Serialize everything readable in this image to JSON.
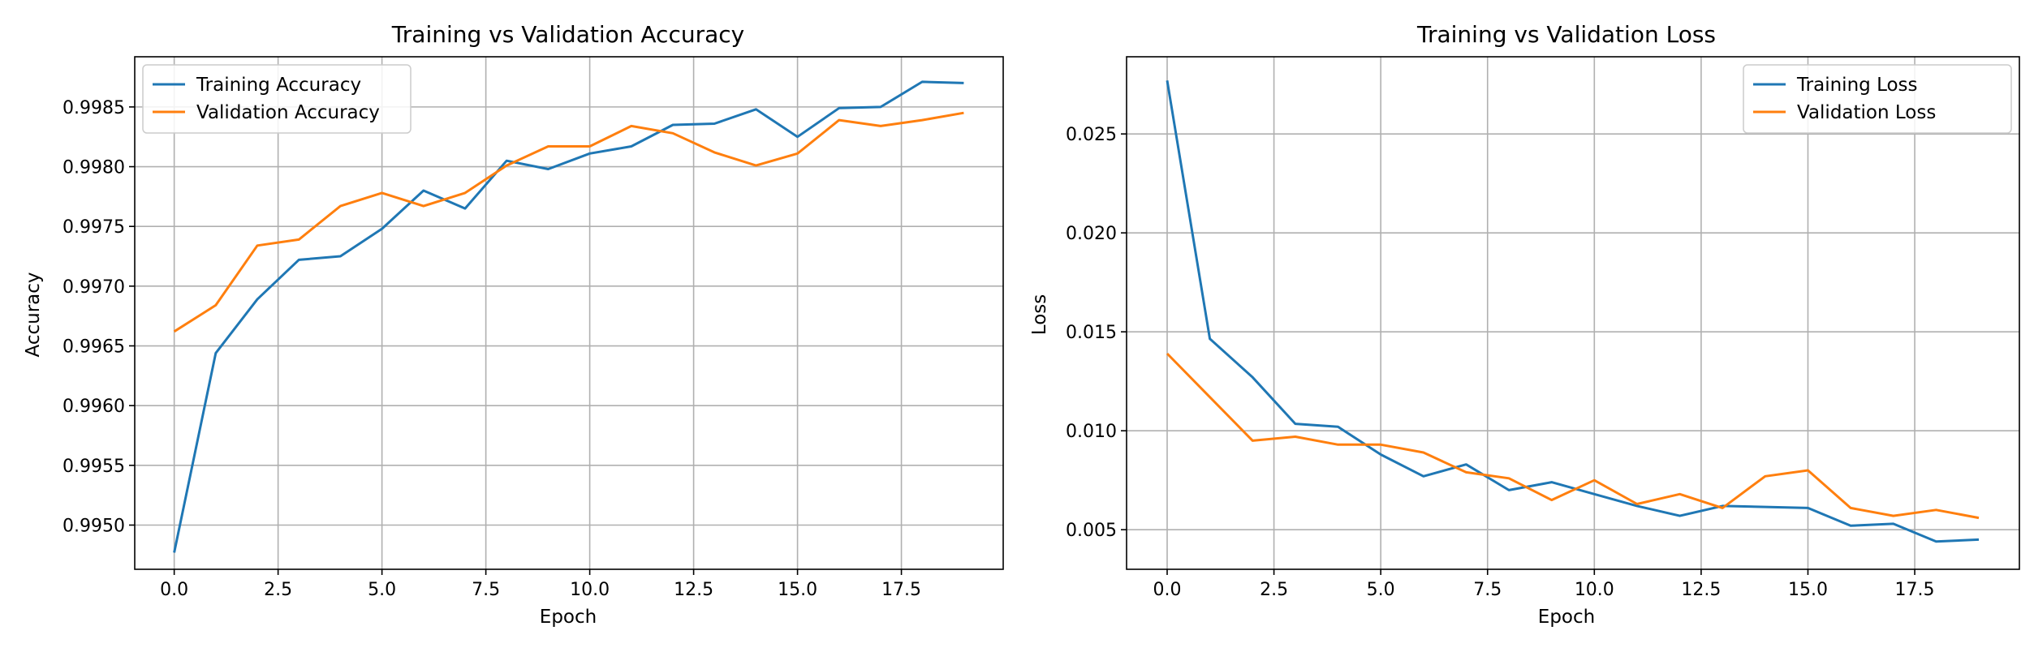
{
  "colors": {
    "series1": "#1f77b4",
    "series2": "#ff7f0e",
    "grid": "#b0b0b0"
  },
  "chart_data": [
    {
      "type": "line",
      "title": "Training vs Validation Accuracy",
      "xlabel": "Epoch",
      "ylabel": "Accuracy",
      "xlim": [
        -0.95,
        19.95
      ],
      "ylim": [
        0.99463,
        0.99892
      ],
      "xticks": [
        0.0,
        2.5,
        5.0,
        7.5,
        10.0,
        12.5,
        15.0,
        17.5
      ],
      "xtick_labels": [
        "0.0",
        "2.5",
        "5.0",
        "7.5",
        "10.0",
        "12.5",
        "15.0",
        "17.5"
      ],
      "yticks": [
        0.995,
        0.9955,
        0.996,
        0.9965,
        0.997,
        0.9975,
        0.998,
        0.9985
      ],
      "ytick_labels": [
        "0.9950",
        "0.9955",
        "0.9960",
        "0.9965",
        "0.9970",
        "0.9975",
        "0.9980",
        "0.9985"
      ],
      "grid": true,
      "legend": "upper-left",
      "x": [
        0,
        1,
        2,
        3,
        4,
        5,
        6,
        7,
        8,
        9,
        10,
        11,
        12,
        13,
        14,
        15,
        16,
        17,
        18,
        19
      ],
      "series": [
        {
          "name": "Training Accuracy",
          "color": "#1f77b4",
          "values": [
            0.99477,
            0.99644,
            0.99689,
            0.99722,
            0.99725,
            0.99748,
            0.9978,
            0.99765,
            0.99805,
            0.99798,
            0.99811,
            0.99817,
            0.99835,
            0.99836,
            0.99848,
            0.99825,
            0.99849,
            0.9985,
            0.99871,
            0.9987
          ]
        },
        {
          "name": "Validation Accuracy",
          "color": "#ff7f0e",
          "values": [
            0.99662,
            0.99684,
            0.99734,
            0.99739,
            0.99767,
            0.99778,
            0.99767,
            0.99778,
            0.99801,
            0.99817,
            0.99817,
            0.99834,
            0.99828,
            0.99812,
            0.99801,
            0.99811,
            0.99839,
            0.99834,
            0.99839,
            0.99845
          ]
        }
      ]
    },
    {
      "type": "line",
      "title": "Training vs Validation Loss",
      "xlabel": "Epoch",
      "ylabel": "Loss",
      "xlim": [
        -0.95,
        19.95
      ],
      "ylim": [
        0.003,
        0.0289
      ],
      "xticks": [
        0.0,
        2.5,
        5.0,
        7.5,
        10.0,
        12.5,
        15.0,
        17.5
      ],
      "xtick_labels": [
        "0.0",
        "2.5",
        "5.0",
        "7.5",
        "10.0",
        "12.5",
        "15.0",
        "17.5"
      ],
      "yticks": [
        0.005,
        0.01,
        0.015,
        0.02,
        0.025
      ],
      "ytick_labels": [
        "0.005",
        "0.010",
        "0.015",
        "0.020",
        "0.025"
      ],
      "grid": true,
      "legend": "upper-right",
      "x": [
        0,
        1,
        2,
        3,
        4,
        5,
        6,
        7,
        8,
        9,
        10,
        11,
        12,
        13,
        14,
        15,
        16,
        17,
        18,
        19
      ],
      "series": [
        {
          "name": "Training Loss",
          "color": "#1f77b4",
          "values": [
            0.0277,
            0.01465,
            0.0127,
            0.01035,
            0.0102,
            0.0088,
            0.0077,
            0.0083,
            0.007,
            0.0074,
            0.0068,
            0.0062,
            0.0057,
            0.0062,
            0.00615,
            0.0061,
            0.0052,
            0.0053,
            0.0044,
            0.0045
          ]
        },
        {
          "name": "Validation Loss",
          "color": "#ff7f0e",
          "values": [
            0.0139,
            0.0117,
            0.0095,
            0.0097,
            0.0093,
            0.0093,
            0.0089,
            0.0079,
            0.0076,
            0.0065,
            0.0075,
            0.0063,
            0.0068,
            0.0061,
            0.0077,
            0.008,
            0.0061,
            0.0057,
            0.006,
            0.0056
          ]
        }
      ]
    }
  ]
}
